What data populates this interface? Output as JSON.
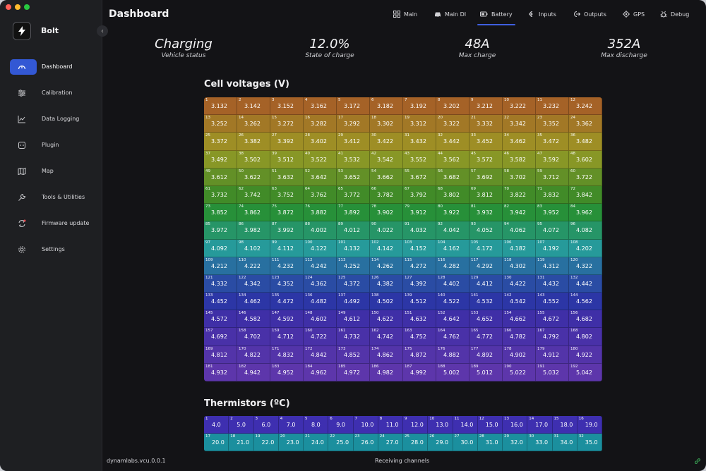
{
  "app": {
    "name": "Bolt"
  },
  "sidebar": {
    "items": [
      {
        "label": "Dashboard",
        "icon": "gauge-icon"
      },
      {
        "label": "Calibration",
        "icon": "sliders-icon"
      },
      {
        "label": "Data Logging",
        "icon": "chart-line-icon"
      },
      {
        "label": "Plugin",
        "icon": "plugin-icon"
      },
      {
        "label": "Map",
        "icon": "map-icon"
      },
      {
        "label": "Tools & Utilities",
        "icon": "wrench-icon"
      },
      {
        "label": "Firmware update",
        "icon": "firmware-update-icon"
      },
      {
        "label": "Settings",
        "icon": "gear-icon"
      }
    ]
  },
  "header": {
    "title": "Dashboard",
    "tabs": [
      {
        "label": "Main",
        "icon": "grid-icon"
      },
      {
        "label": "Main DI",
        "icon": "car-icon"
      },
      {
        "label": "Battery",
        "icon": "battery-icon"
      },
      {
        "label": "Inputs",
        "icon": "input-icon"
      },
      {
        "label": "Outputs",
        "icon": "output-icon"
      },
      {
        "label": "GPS",
        "icon": "gps-icon"
      },
      {
        "label": "Debug",
        "icon": "bug-icon"
      }
    ],
    "active_tab": "Battery"
  },
  "stats": [
    {
      "value": "Charging",
      "label": "Vehicle status"
    },
    {
      "value": "12.0%",
      "label": "State of charge"
    },
    {
      "value": "48A",
      "label": "Max charge"
    },
    {
      "value": "352A",
      "label": "Max discharge"
    }
  ],
  "cell_voltages": {
    "title": "Cell voltages (V)",
    "cells": [
      "3.132",
      "3.142",
      "3.152",
      "3.162",
      "3.172",
      "3.182",
      "3.192",
      "3.202",
      "3.212",
      "3.222",
      "3.232",
      "3.242",
      "3.252",
      "3.262",
      "3.272",
      "3.282",
      "3.292",
      "3.302",
      "3.312",
      "3.322",
      "3.332",
      "3.342",
      "3.352",
      "3.362",
      "3.372",
      "3.382",
      "3.392",
      "3.402",
      "3.412",
      "3.422",
      "3.432",
      "3.442",
      "3.452",
      "3.462",
      "3.472",
      "3.482",
      "3.492",
      "3.502",
      "3.512",
      "3.522",
      "3.532",
      "3.542",
      "3.552",
      "3.562",
      "3.572",
      "3.582",
      "3.592",
      "3.602",
      "3.612",
      "3.622",
      "3.632",
      "3.642",
      "3.652",
      "3.662",
      "3.672",
      "3.682",
      "3.692",
      "3.702",
      "3.712",
      "3.722",
      "3.732",
      "3.742",
      "3.752",
      "3.762",
      "3.772",
      "3.782",
      "3.792",
      "3.802",
      "3.812",
      "3.822",
      "3.832",
      "3.842",
      "3.852",
      "3.862",
      "3.872",
      "3.882",
      "3.892",
      "3.902",
      "3.912",
      "3.922",
      "3.932",
      "3.942",
      "3.952",
      "3.962",
      "3.972",
      "3.982",
      "3.992",
      "4.002",
      "4.012",
      "4.022",
      "4.032",
      "4.042",
      "4.052",
      "4.062",
      "4.072",
      "4.082",
      "4.092",
      "4.102",
      "4.112",
      "4.122",
      "4.132",
      "4.142",
      "4.152",
      "4.162",
      "4.172",
      "4.182",
      "4.192",
      "4.202",
      "4.212",
      "4.222",
      "4.232",
      "4.242",
      "4.252",
      "4.262",
      "4.272",
      "4.282",
      "4.292",
      "4.302",
      "4.312",
      "4.322",
      "4.332",
      "4.342",
      "4.352",
      "4.362",
      "4.372",
      "4.382",
      "4.392",
      "4.402",
      "4.412",
      "4.422",
      "4.432",
      "4.442",
      "4.452",
      "4.462",
      "4.472",
      "4.482",
      "4.492",
      "4.502",
      "4.512",
      "4.522",
      "4.532",
      "4.542",
      "4.552",
      "4.562",
      "4.572",
      "4.582",
      "4.592",
      "4.602",
      "4.612",
      "4.622",
      "4.632",
      "4.642",
      "4.652",
      "4.662",
      "4.672",
      "4.682",
      "4.692",
      "4.702",
      "4.712",
      "4.722",
      "4.732",
      "4.742",
      "4.752",
      "4.762",
      "4.772",
      "4.782",
      "4.792",
      "4.802",
      "4.812",
      "4.822",
      "4.832",
      "4.842",
      "4.852",
      "4.862",
      "4.872",
      "4.882",
      "4.892",
      "4.902",
      "4.912",
      "4.922",
      "4.932",
      "4.942",
      "4.952",
      "4.962",
      "4.972",
      "4.982",
      "4.992",
      "5.002",
      "5.012",
      "5.022",
      "5.032",
      "5.042"
    ]
  },
  "thermistors": {
    "title": "Thermistors (ºC)",
    "cells": [
      "4.0",
      "5.0",
      "6.0",
      "7.0",
      "8.0",
      "9.0",
      "10.0",
      "11.0",
      "12.0",
      "13.0",
      "14.0",
      "15.0",
      "16.0",
      "17.0",
      "18.0",
      "19.0",
      "20.0",
      "21.0",
      "22.0",
      "23.0",
      "24.0",
      "25.0",
      "26.0",
      "27.0",
      "28.0",
      "29.0",
      "30.0",
      "31.0",
      "32.0",
      "33.0",
      "34.0",
      "35.0"
    ]
  },
  "status_bar": {
    "version": "dynamlabs.vcu.0.0.1",
    "status": "Receiving channels"
  },
  "colors": {
    "accent": "#3358d4",
    "background": "#131316",
    "sidebar": "#1e1f22"
  }
}
